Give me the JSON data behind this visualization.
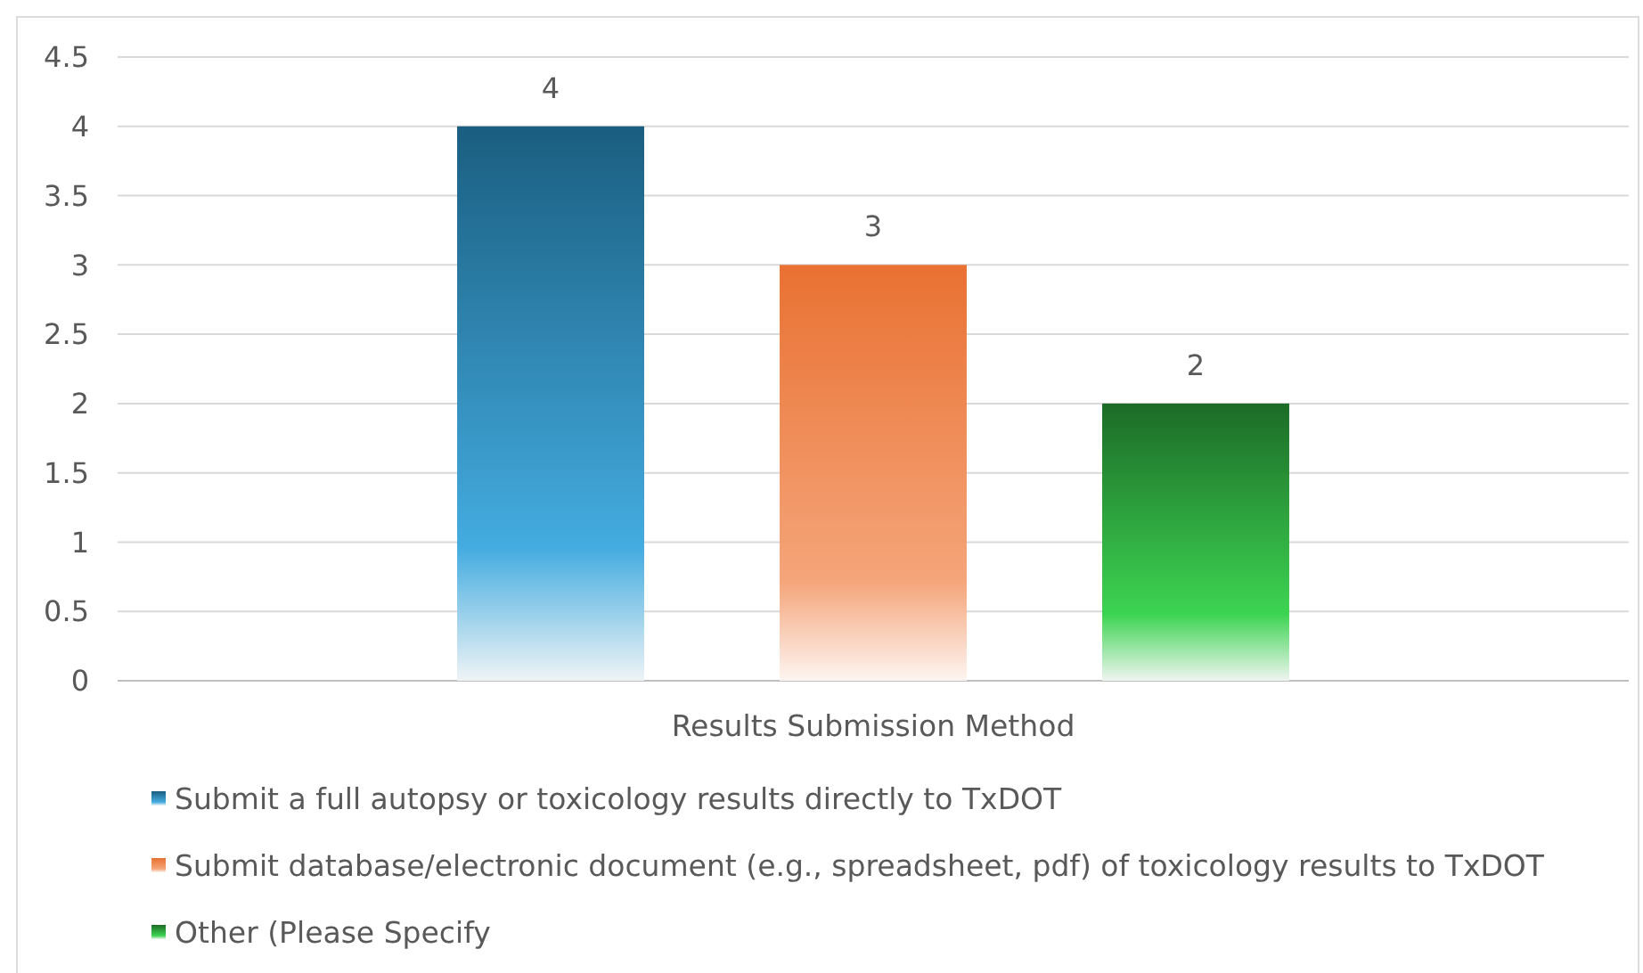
{
  "chart_data": {
    "type": "bar",
    "categories": [
      "Results Submission Method"
    ],
    "series": [
      {
        "name": "Submit a full autopsy or toxicology results directly to TxDOT",
        "color": "#1a5e80",
        "values": [
          4
        ]
      },
      {
        "name": "Submit database/electronic document (e.g., spreadsheet, pdf) of toxicology results to TxDOT",
        "color": "#e97132",
        "values": [
          3
        ]
      },
      {
        "name": "Other (Please Specify",
        "color": "#1c6b27",
        "values": [
          2
        ]
      }
    ],
    "ylim": [
      0,
      4.5
    ],
    "yticks": [
      0,
      0.5,
      1,
      1.5,
      2,
      2.5,
      3,
      3.5,
      4,
      4.5
    ],
    "grid": "y",
    "legend": "bottom",
    "data_labels": true
  }
}
